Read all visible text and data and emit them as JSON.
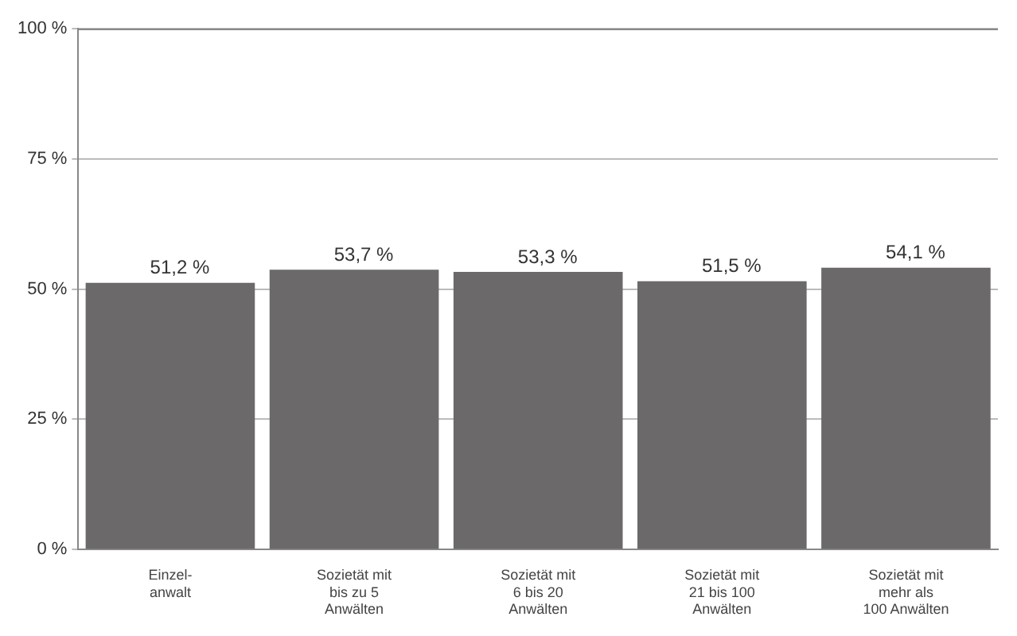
{
  "chart_data": {
    "type": "bar",
    "categories": [
      "Einzel-\nanwalt",
      "Sozietät mit\nbis zu 5\nAnwälten",
      "Sozietät mit\n6 bis 20\nAnwälten",
      "Sozietät mit\n21 bis 100\nAnwälten",
      "Sozietät mit\nmehr als\n100 Anwälten"
    ],
    "values": [
      51.2,
      53.7,
      53.3,
      51.5,
      54.1
    ],
    "value_labels": [
      "51,2 %",
      "53,7 %",
      "53,3 %",
      "51,5 %",
      "54,1 %"
    ],
    "color": "#6b6969",
    "ylim": [
      0,
      100
    ],
    "yticks": [
      {
        "value": 0,
        "label": "0 %"
      },
      {
        "value": 25,
        "label": "25 %"
      },
      {
        "value": 50,
        "label": "50 %"
      },
      {
        "value": 75,
        "label": "75 %"
      },
      {
        "value": 100,
        "label": "100 %"
      }
    ],
    "grid": "y",
    "legend": false
  }
}
